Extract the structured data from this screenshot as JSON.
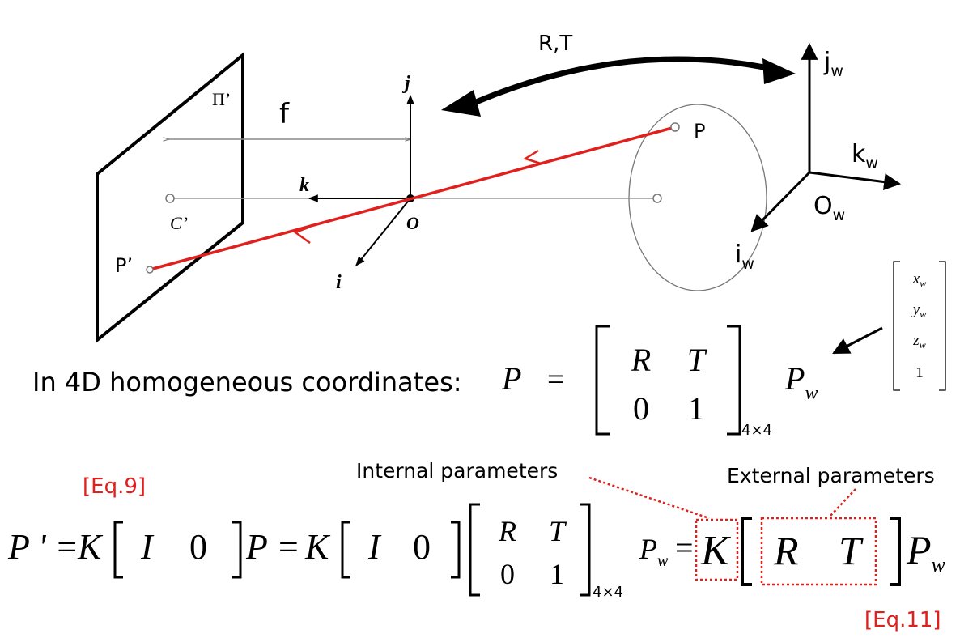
{
  "colors": {
    "ray": "#e0201c",
    "label_red": "#e0201c",
    "ink": "#000000",
    "guide": "#999999"
  },
  "diagram": {
    "transform_label": "R,T",
    "focal_label": "f",
    "image_plane_label": "Π’",
    "principal_point_label": "C’",
    "camera_axes": {
      "j": "j",
      "k": "k",
      "i": "i",
      "origin": "O"
    },
    "world_point": "P",
    "image_point": "P’",
    "world_axes": {
      "j": "j",
      "j_sub": "w",
      "k": "k",
      "k_sub": "w",
      "i": "i",
      "i_sub": "w",
      "origin": "O",
      "origin_sub": "w"
    }
  },
  "world_vector": [
    {
      "base": "x",
      "sub": "w"
    },
    {
      "base": "y",
      "sub": "w"
    },
    {
      "base": "z",
      "sub": "w"
    },
    {
      "base": "1",
      "sub": ""
    }
  ],
  "eq_4d": {
    "prefix": "In 4D homogeneous coordinates:",
    "lhs": "P",
    "equals": "=",
    "matrix": {
      "r1c1": "R",
      "r1c2": "T",
      "r2c1": "0",
      "r2c2": "1"
    },
    "dim": "4×4",
    "rhs": "P",
    "rhs_sub": "w"
  },
  "labels": {
    "internal": "Internal parameters",
    "external": "External parameters",
    "eq9": "[Eq.9]",
    "eq11": "[Eq.11]"
  },
  "eq_bottom": {
    "p_prime": "P ' =",
    "k1": "K",
    "identity": "I",
    "zero": "0",
    "p_eq": "P =",
    "k2": "K",
    "identity2": "I",
    "zero2": "0",
    "matrix": {
      "r1c1": "R",
      "r1c2": "T",
      "r2c1": "0",
      "r2c2": "1"
    },
    "dim": "4×4",
    "pw": "P",
    "pw_sub": "w",
    "equals": "=",
    "k3": "K",
    "r": "R",
    "t": "T",
    "pw2": "P",
    "pw2_sub": "w"
  }
}
